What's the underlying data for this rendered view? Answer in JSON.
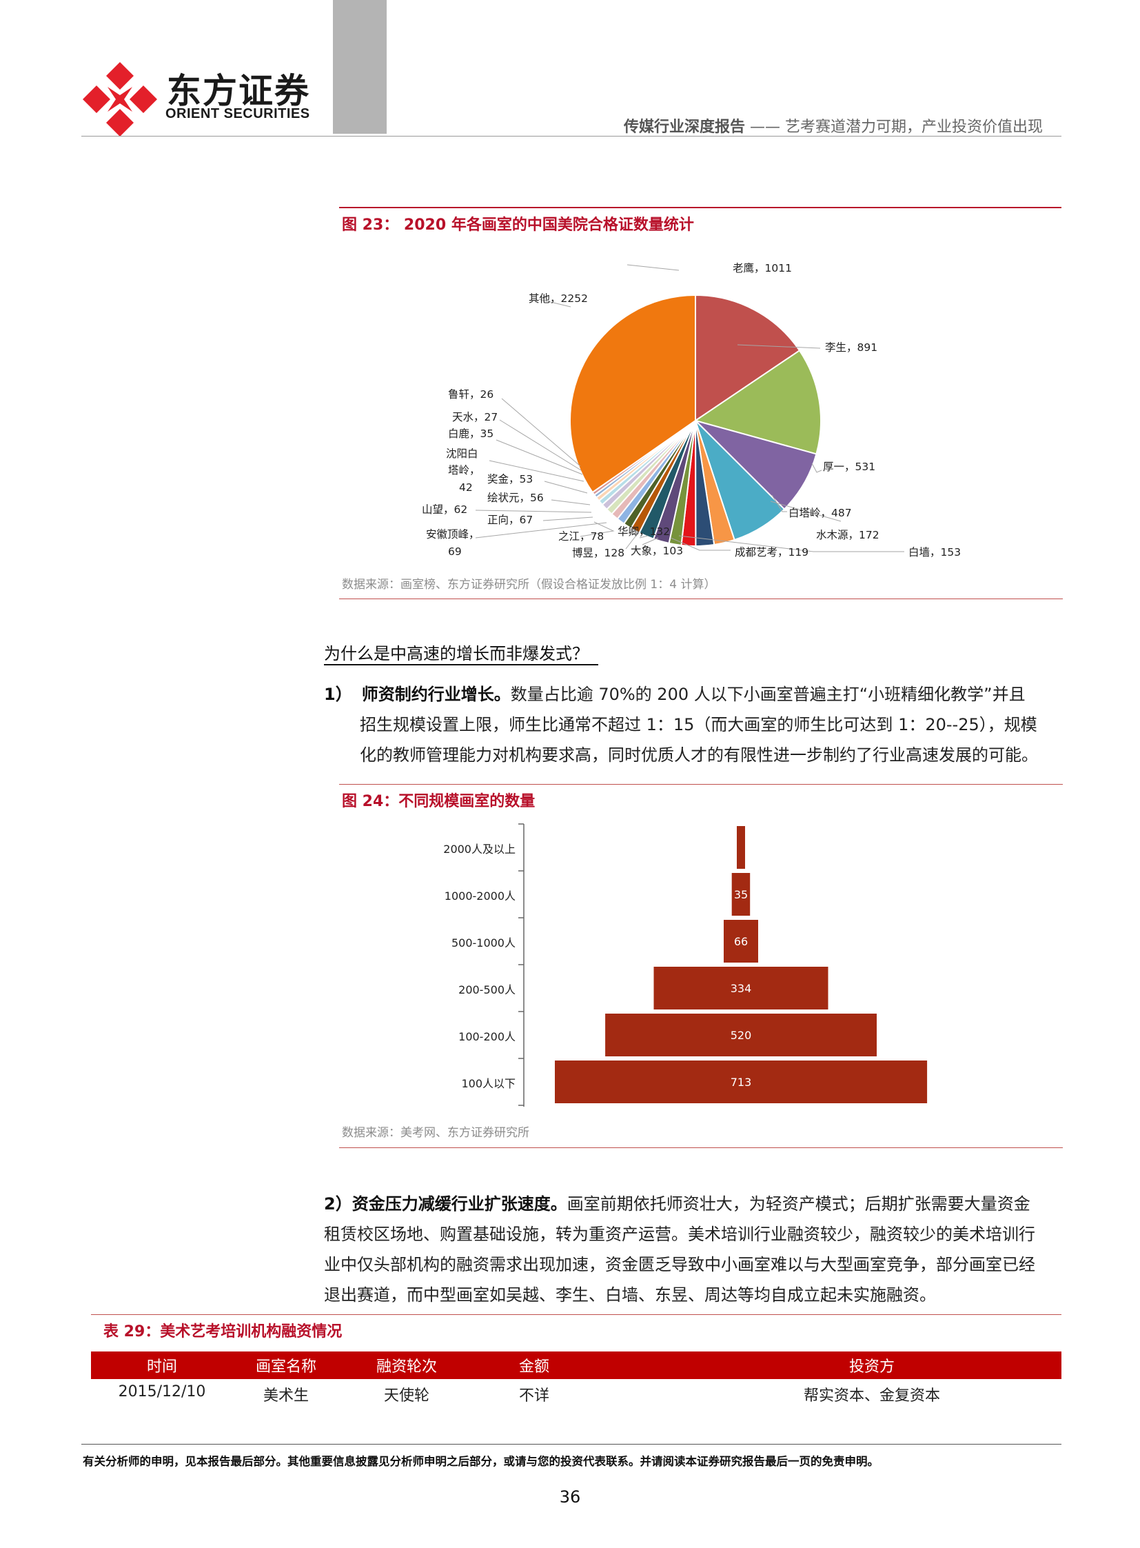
{
  "header": {
    "logo_cn": "东方证券",
    "logo_en": "ORIENT SECURITIES",
    "report_type": "传媒行业深度报告",
    "report_separator": " —— ",
    "report_subtitle": "艺考赛道潜力可期，产业投资价值出现"
  },
  "figure23": {
    "title": "图 23：  2020 年各画室的中国美院合格证数量统计",
    "source": "数据来源：画室榜、东方证券研究所（假设合格证发放比例 1：4 计算）",
    "chart_data": {
      "type": "pie",
      "title": "2020 年各画室的中国美院合格证数量统计",
      "slices": [
        {
          "label": "老鹰",
          "value": 1011,
          "color": "#c0504d"
        },
        {
          "label": "李生",
          "value": 891,
          "color": "#9bbb59"
        },
        {
          "label": "厚一",
          "value": 531,
          "color": "#8064a2"
        },
        {
          "label": "白塔岭",
          "value": 487,
          "color": "#4bacc6"
        },
        {
          "label": "水木源",
          "value": 172,
          "color": "#f79646"
        },
        {
          "label": "白墙",
          "value": 153,
          "color": "#2c4d75"
        },
        {
          "label": "成都艺考",
          "value": 119,
          "color": "#e3151a"
        },
        {
          "label": "大象",
          "value": 103,
          "color": "#77933c"
        },
        {
          "label": "华卿",
          "value": 132,
          "color": "#5f497a"
        },
        {
          "label": "博昱",
          "value": 128,
          "color": "#215968"
        },
        {
          "label": "之江",
          "value": 78,
          "color": "#b65708"
        },
        {
          "label": "安徽顶峰",
          "value": 69,
          "color": "#4f6228"
        },
        {
          "label": "正向",
          "value": 67,
          "color": "#8eb4e3"
        },
        {
          "label": "山望",
          "value": 62,
          "color": "#e6b9b8"
        },
        {
          "label": "绘状元",
          "value": 56,
          "color": "#d7e4bd"
        },
        {
          "label": "奖金",
          "value": 53,
          "color": "#ccc1da"
        },
        {
          "label": "沈阳白塔岭",
          "value": 42,
          "color": "#b7dee8"
        },
        {
          "label": "白鹿",
          "value": 35,
          "color": "#fcd5b5"
        },
        {
          "label": "天水",
          "value": 27,
          "color": "#95b3d7"
        },
        {
          "label": "鲁轩",
          "value": 26,
          "color": "#d99694"
        },
        {
          "label": "其他",
          "value": 2252,
          "color": "#f0780f"
        }
      ],
      "labels": {
        "laoying": "老鹰，1011",
        "lisheng": "李生，891",
        "houyi": "厚一，531",
        "baitaling": "白塔岭，487",
        "shuimuyuan": "水木源，172",
        "baiqiang": "白墙，153",
        "chengdu": "成都艺考，119",
        "daxiang": "大象，103",
        "huaqing": "华卿，132",
        "boyu": "博昱，128",
        "zhijiang": "之江，78",
        "anhui_1": "安徽顶峰，",
        "anhui_2": "69",
        "zhengxiang": "正向，67",
        "shanwang": "山望，62",
        "huizhuangyuan": "绘状元，56",
        "jiangjin": "奖金，53",
        "shenyang_1": "沈阳白",
        "shenyang_2": "塔岭，",
        "shenyang_3": "42",
        "bailu": "白鹿，35",
        "tianshui": "天水，27",
        "luxuan": "鲁轩，26",
        "qita": "其他，2252"
      }
    }
  },
  "question_heading": "为什么是中高速的增长而非爆发式？",
  "point1": {
    "number": "1）",
    "lead": "师资制约行业增长。",
    "line1": "数量占比逾 70%的 200 人以下小画室普遍主打“小班精细化教学”并且",
    "line2": "招生规模设置上限，师生比通常不超过 1：15（而大画室的师生比可达到 1：20--25），规模",
    "line3": "化的教师管理能力对机构要求高，同时优质人才的有限性进一步制约了行业高速发展的可能。"
  },
  "figure24": {
    "title": "图 24：不同规模画室的数量",
    "source": "数据来源：美考网、东方证券研究所",
    "chart_data": {
      "type": "bar",
      "orientation": "horizontal-centered",
      "categories": [
        "2000人及以上",
        "1000-2000人",
        "500-1000人",
        "200-500人",
        "100-200人",
        "100人以下"
      ],
      "values": [
        null,
        35,
        66,
        334,
        520,
        713
      ],
      "value_labels": [
        "",
        "35",
        "66",
        "334",
        "520",
        "713"
      ],
      "color": "#a32a12"
    }
  },
  "point2": {
    "lead": "2）资金压力减缓行业扩张速度。",
    "line1": "画室前期依托师资壮大，为轻资产模式；后期扩张需要大量资金",
    "line2": "租赁校区场地、购置基础设施，转为重资产运营。美术培训行业融资较少，融资较少的美术培训行",
    "line3": "业中仅头部机构的融资需求出现加速，资金匮乏导致中小画室难以与大型画室竞争，部分画室已经",
    "line4": "退出赛道，而中型画室如吴越、李生、白墙、东昱、周达等均自成立起未实施融资。"
  },
  "table29": {
    "title": "表 29：美术艺考培训机构融资情况",
    "columns": [
      "时间",
      "画室名称",
      "融资轮次",
      "金额",
      "投资方"
    ],
    "rows": [
      [
        "2015/12/10",
        "美术生",
        "天使轮",
        "不详",
        "帮实资本、金复资本"
      ]
    ]
  },
  "footer": {
    "disclaimer": "有关分析师的申明，见本报告最后部分。其他重要信息披露见分析师申明之后部分，或请与您的投资代表联系。并请阅读本证券研究报告最后一页的免责申明。",
    "page_number": "36"
  }
}
